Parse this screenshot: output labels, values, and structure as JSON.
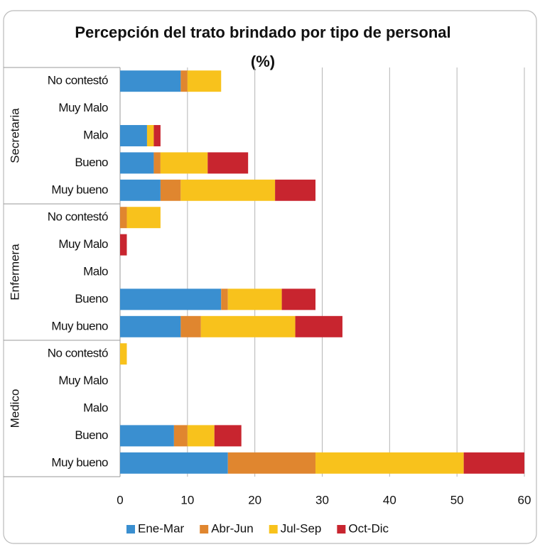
{
  "chart_data": {
    "type": "stacked_barh",
    "title": "Percepción del trato brindado por tipo de personal",
    "subtitle": "(%)",
    "groups": [
      "Secretaria",
      "Enfermera",
      "Medico"
    ],
    "categories": [
      "No contestó",
      "Muy Malo",
      "Malo",
      "Bueno",
      "Muy bueno",
      "No contestó",
      "Muy Malo",
      "Malo",
      "Bueno",
      "Muy bueno",
      "No contestó",
      "Muy Malo",
      "Malo",
      "Bueno",
      "Muy bueno"
    ],
    "series": [
      {
        "name": "Ene-Mar",
        "color": "#3a8fd0",
        "values": [
          9,
          0,
          4,
          5,
          6,
          0,
          0,
          0,
          15,
          9,
          0,
          0,
          0,
          8,
          16
        ]
      },
      {
        "name": "Abr-Jun",
        "color": "#e0862f",
        "values": [
          1,
          0,
          0,
          1,
          3,
          1,
          0,
          0,
          1,
          3,
          0,
          0,
          0,
          2,
          13
        ]
      },
      {
        "name": "Jul-Sep",
        "color": "#f8c21c",
        "values": [
          5,
          0,
          1,
          7,
          14,
          5,
          0,
          0,
          8,
          14,
          1,
          0,
          0,
          4,
          22
        ]
      },
      {
        "name": "Oct-Dic",
        "color": "#c8252f",
        "values": [
          0,
          0,
          1,
          6,
          6,
          0,
          1,
          0,
          5,
          7,
          0,
          0,
          0,
          4,
          9
        ]
      }
    ],
    "xlim": [
      0,
      60
    ],
    "xticks": [
      0,
      10,
      20,
      30,
      40,
      50,
      60
    ],
    "grid": true,
    "legend": "bottom"
  }
}
